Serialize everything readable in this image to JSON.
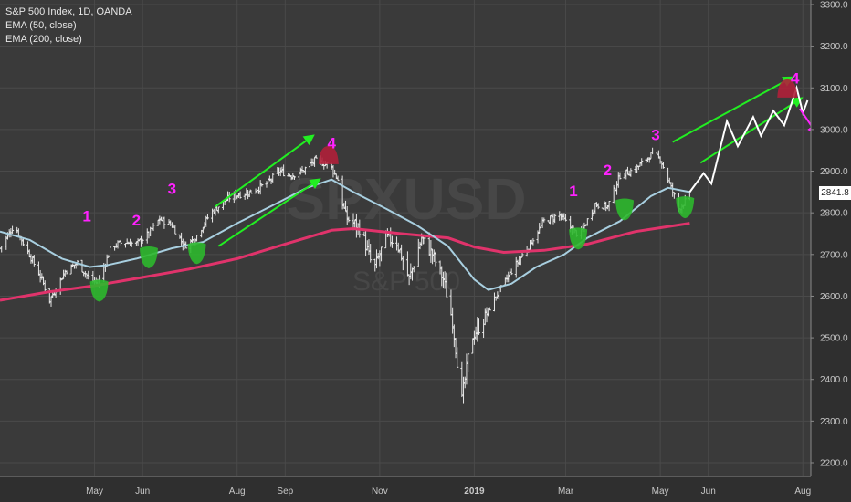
{
  "legend": {
    "symbol": "S&P 500 Index, 1D, OANDA",
    "ema50": "EMA (50, close)",
    "ema200": "EMA (200, close)"
  },
  "last_price": "2841.8",
  "watermark": {
    "big": "SPXUSD",
    "small": "S&P 500"
  },
  "colors": {
    "background": "#3a3a3a",
    "grid": "#4a4a4a",
    "bars": "#e8e8e8",
    "ema50": "#a8cfe0",
    "ema200": "#e0336b",
    "wave_labels": "#ff22ff",
    "channel": "#22ee22",
    "support_marker": "#2db82d",
    "top_marker": "#b0203a",
    "projection": "#ffffff"
  },
  "chart_data": {
    "type": "ohlc",
    "title": "S&P 500 Index, 1D, OANDA",
    "ylim": [
      2150,
      3330
    ],
    "y_ticks": [
      2200,
      2300,
      2400,
      2500,
      2600,
      2700,
      2800,
      2900,
      3000,
      3100,
      3200,
      3300
    ],
    "x_ticks": [
      "May",
      "Jun",
      "Aug",
      "Sep",
      "Nov",
      "2019",
      "Mar",
      "May",
      "Jun",
      "Aug"
    ],
    "close_path": [
      [
        "2018-03-01",
        2715
      ],
      [
        "2018-03-10",
        2770
      ],
      [
        "2018-03-20",
        2700
      ],
      [
        "2018-03-28",
        2640
      ],
      [
        "2018-04-02",
        2590
      ],
      [
        "2018-04-12",
        2660
      ],
      [
        "2018-04-20",
        2680
      ],
      [
        "2018-04-28",
        2640
      ],
      [
        "2018-05-03",
        2630
      ],
      [
        "2018-05-12",
        2720
      ],
      [
        "2018-05-20",
        2730
      ],
      [
        "2018-05-28",
        2725
      ],
      [
        "2018-06-05",
        2750
      ],
      [
        "2018-06-12",
        2785
      ],
      [
        "2018-06-20",
        2770
      ],
      [
        "2018-06-28",
        2720
      ],
      [
        "2018-07-05",
        2740
      ],
      [
        "2018-07-15",
        2800
      ],
      [
        "2018-07-28",
        2840
      ],
      [
        "2018-08-10",
        2850
      ],
      [
        "2018-08-20",
        2870
      ],
      [
        "2018-08-28",
        2900
      ],
      [
        "2018-09-05",
        2890
      ],
      [
        "2018-09-12",
        2900
      ],
      [
        "2018-09-20",
        2925
      ],
      [
        "2018-09-30",
        2915
      ],
      [
        "2018-10-05",
        2880
      ],
      [
        "2018-10-10",
        2790
      ],
      [
        "2018-10-20",
        2760
      ],
      [
        "2018-10-28",
        2660
      ],
      [
        "2018-11-05",
        2740
      ],
      [
        "2018-11-12",
        2730
      ],
      [
        "2018-11-20",
        2640
      ],
      [
        "2018-11-28",
        2740
      ],
      [
        "2018-12-05",
        2700
      ],
      [
        "2018-12-12",
        2640
      ],
      [
        "2018-12-18",
        2540
      ],
      [
        "2018-12-24",
        2350
      ],
      [
        "2018-12-30",
        2500
      ],
      [
        "2019-01-05",
        2530
      ],
      [
        "2019-01-15",
        2600
      ],
      [
        "2019-01-25",
        2660
      ],
      [
        "2019-02-05",
        2720
      ],
      [
        "2019-02-15",
        2780
      ],
      [
        "2019-02-25",
        2795
      ],
      [
        "2019-03-05",
        2760
      ],
      [
        "2019-03-10",
        2745
      ],
      [
        "2019-03-20",
        2820
      ],
      [
        "2019-03-28",
        2815
      ],
      [
        "2019-04-05",
        2890
      ],
      [
        "2019-04-15",
        2905
      ],
      [
        "2019-04-25",
        2940
      ],
      [
        "2019-05-01",
        2930
      ],
      [
        "2019-05-06",
        2880
      ],
      [
        "2019-05-13",
        2810
      ],
      [
        "2019-05-20",
        2840
      ]
    ],
    "ema50": [
      [
        "2018-03-01",
        2755
      ],
      [
        "2018-03-20",
        2735
      ],
      [
        "2018-04-10",
        2690
      ],
      [
        "2018-04-28",
        2670
      ],
      [
        "2018-05-10",
        2675
      ],
      [
        "2018-05-28",
        2690
      ],
      [
        "2018-06-20",
        2715
      ],
      [
        "2018-07-10",
        2730
      ],
      [
        "2018-08-01",
        2775
      ],
      [
        "2018-08-25",
        2820
      ],
      [
        "2018-09-15",
        2860
      ],
      [
        "2018-10-01",
        2880
      ],
      [
        "2018-10-15",
        2850
      ],
      [
        "2018-11-05",
        2810
      ],
      [
        "2018-11-25",
        2770
      ],
      [
        "2018-12-15",
        2720
      ],
      [
        "2019-01-01",
        2640
      ],
      [
        "2019-01-10",
        2615
      ],
      [
        "2019-01-25",
        2630
      ],
      [
        "2019-02-10",
        2670
      ],
      [
        "2019-02-28",
        2700
      ],
      [
        "2019-03-15",
        2740
      ],
      [
        "2019-04-05",
        2780
      ],
      [
        "2019-04-25",
        2840
      ],
      [
        "2019-05-06",
        2860
      ],
      [
        "2019-05-20",
        2850
      ]
    ],
    "ema200": [
      [
        "2018-03-01",
        2590
      ],
      [
        "2018-04-01",
        2610
      ],
      [
        "2018-05-01",
        2625
      ],
      [
        "2018-06-01",
        2645
      ],
      [
        "2018-07-01",
        2665
      ],
      [
        "2018-08-01",
        2690
      ],
      [
        "2018-09-01",
        2725
      ],
      [
        "2018-10-01",
        2758
      ],
      [
        "2018-10-15",
        2762
      ],
      [
        "2018-11-15",
        2750
      ],
      [
        "2018-12-15",
        2740
      ],
      [
        "2019-01-01",
        2718
      ],
      [
        "2019-01-20",
        2705
      ],
      [
        "2019-02-15",
        2710
      ],
      [
        "2019-03-15",
        2725
      ],
      [
        "2019-04-15",
        2755
      ],
      [
        "2019-05-20",
        2775
      ]
    ],
    "wave_labels": [
      {
        "text": "1",
        "date": "2018-04-26",
        "price": 2780
      },
      {
        "text": "2",
        "date": "2018-05-28",
        "price": 2770
      },
      {
        "text": "3",
        "date": "2018-06-20",
        "price": 2845
      },
      {
        "text": "4",
        "date": "2018-10-01",
        "price": 2955
      },
      {
        "text": "1",
        "date": "2019-03-06",
        "price": 2840
      },
      {
        "text": "2",
        "date": "2019-03-28",
        "price": 2890
      },
      {
        "text": "3",
        "date": "2019-04-28",
        "price": 2975
      },
      {
        "text": "4",
        "date": "2019-07-27",
        "price": 3110
      }
    ],
    "support_markers": [
      {
        "date": "2018-05-04",
        "price": 2600
      },
      {
        "date": "2018-06-05",
        "price": 2680
      },
      {
        "date": "2018-07-06",
        "price": 2690
      },
      {
        "date": "2019-03-09",
        "price": 2725
      },
      {
        "date": "2019-04-08",
        "price": 2795
      },
      {
        "date": "2019-05-17",
        "price": 2800
      }
    ],
    "top_markers": [
      {
        "date": "2018-09-29",
        "price": 2930
      },
      {
        "date": "2019-07-22",
        "price": 3090
      }
    ],
    "channel_arrows": [
      {
        "from": [
          "2018-07-18",
          2815
        ],
        "to": [
          "2018-09-19",
          2985
        ]
      },
      {
        "from": [
          "2018-07-20",
          2720
        ],
        "to": [
          "2018-09-23",
          2880
        ]
      },
      {
        "from": [
          "2019-05-09",
          2970
        ],
        "to": [
          "2019-07-25",
          3125
        ]
      },
      {
        "from": [
          "2019-05-27",
          2920
        ],
        "to": [
          "2019-07-31",
          3075
        ]
      }
    ],
    "projection_path": [
      [
        "2019-05-20",
        2850
      ],
      [
        "2019-05-29",
        2895
      ],
      [
        "2019-06-03",
        2870
      ],
      [
        "2019-06-13",
        3020
      ],
      [
        "2019-06-20",
        2960
      ],
      [
        "2019-06-30",
        3030
      ],
      [
        "2019-07-05",
        2985
      ],
      [
        "2019-07-13",
        3045
      ],
      [
        "2019-07-20",
        3010
      ],
      [
        "2019-07-28",
        3100
      ],
      [
        "2019-08-01",
        3040
      ],
      [
        "2019-08-04",
        3070
      ]
    ],
    "projection_arrow": {
      "from": [
        "2019-07-30",
        3050
      ],
      "to": [
        "2019-08-10",
        2990
      ]
    }
  }
}
